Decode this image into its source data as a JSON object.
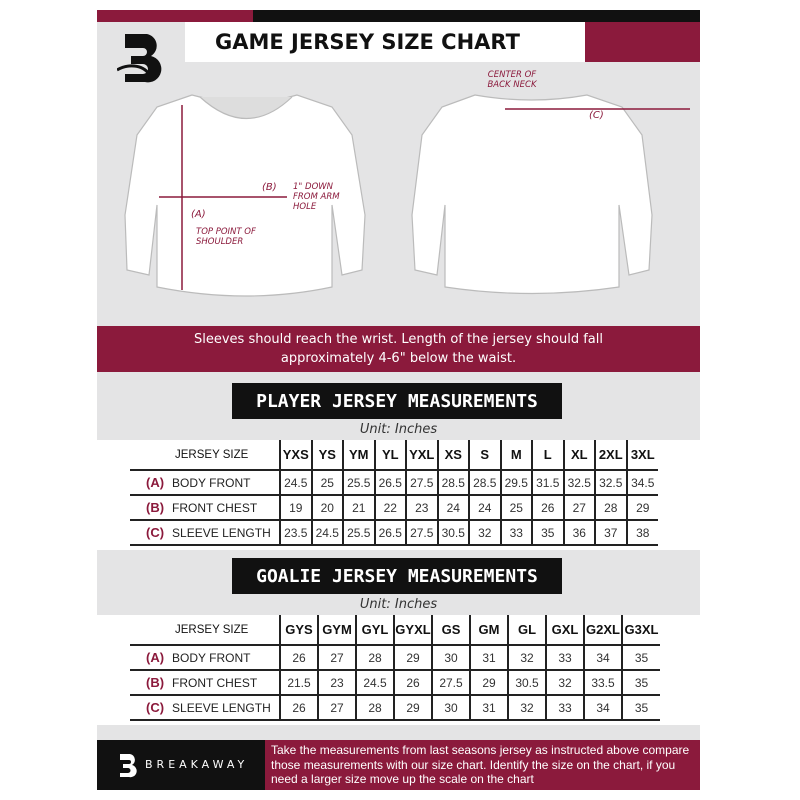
{
  "header": {
    "title": "GAME JERSEY SIZE CHART"
  },
  "diagram": {
    "front_labels": {
      "a": "(A)",
      "a_desc": "TOP POINT OF SHOULDER",
      "b": "(B)",
      "b_desc": "1\" DOWN FROM ARM HOLE"
    },
    "back_labels": {
      "c": "(C)",
      "c_desc": "CENTER OF BACK NECK"
    }
  },
  "note": "Sleeves should reach the wrist. Length of the jersey should fall approximately 4-6\" below the waist.",
  "player": {
    "title": "PLAYER JERSEY MEASUREMENTS",
    "unit": "Unit: Inches",
    "size_label": "JERSEY SIZE",
    "sizes": [
      "YXS",
      "YS",
      "YM",
      "YL",
      "YXL",
      "XS",
      "S",
      "M",
      "L",
      "XL",
      "2XL",
      "3XL"
    ],
    "rows": [
      {
        "key": "(A)",
        "label": "BODY FRONT",
        "values": [
          "24.5",
          "25",
          "25.5",
          "26.5",
          "27.5",
          "28.5",
          "28.5",
          "29.5",
          "31.5",
          "32.5",
          "32.5",
          "34.5"
        ]
      },
      {
        "key": "(B)",
        "label": "FRONT CHEST",
        "values": [
          "19",
          "20",
          "21",
          "22",
          "23",
          "24",
          "24",
          "25",
          "26",
          "27",
          "28",
          "29"
        ]
      },
      {
        "key": "(C)",
        "label": "SLEEVE LENGTH",
        "values": [
          "23.5",
          "24.5",
          "25.5",
          "26.5",
          "27.5",
          "30.5",
          "32",
          "33",
          "35",
          "36",
          "37",
          "38"
        ]
      }
    ]
  },
  "goalie": {
    "title": "GOALIE JERSEY MEASUREMENTS",
    "unit": "Unit: Inches",
    "size_label": "JERSEY SIZE",
    "sizes": [
      "GYS",
      "GYM",
      "GYL",
      "GYXL",
      "GS",
      "GM",
      "GL",
      "GXL",
      "G2XL",
      "G3XL"
    ],
    "rows": [
      {
        "key": "(A)",
        "label": "BODY FRONT",
        "values": [
          "26",
          "27",
          "28",
          "29",
          "30",
          "31",
          "32",
          "33",
          "34",
          "35"
        ]
      },
      {
        "key": "(B)",
        "label": "FRONT CHEST",
        "values": [
          "21.5",
          "23",
          "24.5",
          "26",
          "27.5",
          "29",
          "30.5",
          "32",
          "33.5",
          "35"
        ]
      },
      {
        "key": "(C)",
        "label": "SLEEVE LENGTH",
        "values": [
          "26",
          "27",
          "28",
          "29",
          "30",
          "31",
          "32",
          "33",
          "34",
          "35"
        ]
      }
    ]
  },
  "footer": {
    "brand": "BREAKAWAY",
    "instructions": "Take the measurements from last seasons jersey as instructed above compare those measurements  with our size chart. Identify the size on the chart, if you need a larger size move up the scale on the chart"
  },
  "colors": {
    "accent": "#8b1a3c",
    "dark": "#111111",
    "background": "#e4e4e5"
  }
}
